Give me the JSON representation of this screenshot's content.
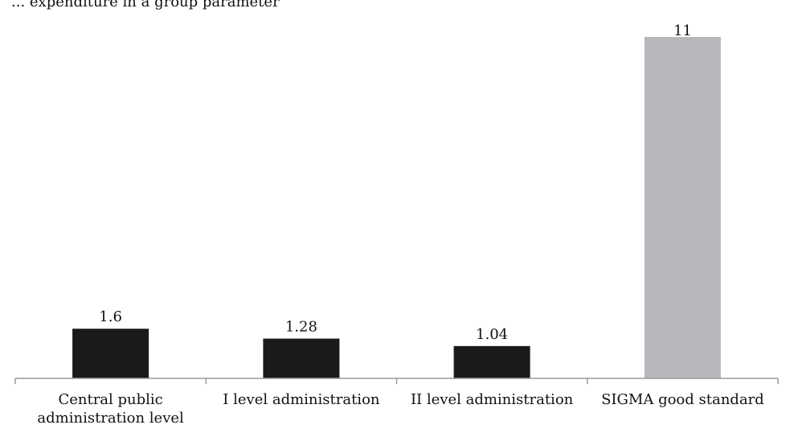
{
  "chart_data": {
    "type": "bar",
    "title": "... expenditure in a group parameter",
    "categories": [
      [
        "Central public",
        "administration level"
      ],
      [
        "I level administration"
      ],
      [
        "II level administration"
      ],
      [
        "SIGMA good standard"
      ]
    ],
    "series": [
      {
        "values": [
          1.6,
          1.28,
          1.04,
          11
        ]
      }
    ],
    "value_labels": [
      "1.6",
      "1.28",
      "1.04",
      "11"
    ],
    "bar_colors": [
      "#1a1a1a",
      "#1a1a1a",
      "#1a1a1a",
      "#b8b8bc"
    ],
    "axis_color": "#9a9a9a",
    "ylim": [
      0,
      11
    ],
    "grid": false,
    "legend": "none"
  }
}
